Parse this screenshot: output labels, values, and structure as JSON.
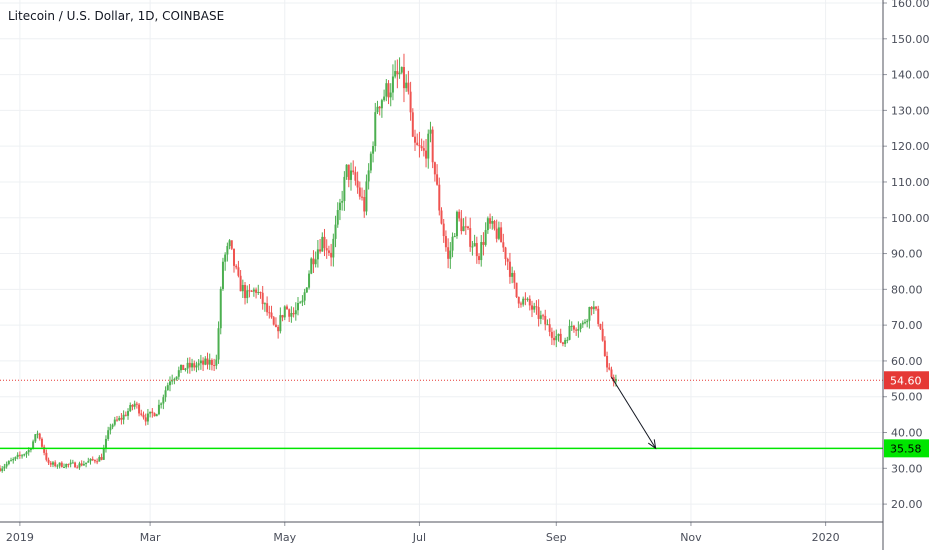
{
  "chart_data": {
    "type": "candlestick",
    "title": "Litecoin / U.S. Dollar, 1D, COINBASE",
    "x_labels": [
      "2019",
      "Mar",
      "May",
      "Jul",
      "Sep",
      "Nov",
      "2020"
    ],
    "y_ticks": [
      "20.00",
      "30.00",
      "40.00",
      "50.00",
      "60.00",
      "70.00",
      "80.00",
      "90.00",
      "100.00",
      "110.00",
      "120.00",
      "130.00",
      "140.00",
      "150.00",
      "160.00"
    ],
    "ylim": [
      15,
      160
    ],
    "xlim": [
      "2018-12-23",
      "2020-01-27"
    ],
    "grid": true,
    "colors": {
      "up": "#26a69a",
      "up_bar": "#4caf50",
      "down": "#ef5350",
      "support": "#00e600",
      "price_line": "#e53935"
    },
    "price_line": {
      "value": 54.6,
      "label": "54.60"
    },
    "support_line": {
      "value": 35.58,
      "label": "35.58"
    },
    "arrow": {
      "from": {
        "date": "2019-09-26",
        "price": 55.5
      },
      "to": {
        "date": "2019-10-16",
        "price": 35.6
      }
    },
    "path": [
      [
        "2018-12-23",
        30
      ],
      [
        "2019-01-05",
        35
      ],
      [
        "2019-01-09",
        40
      ],
      [
        "2019-01-14",
        31
      ],
      [
        "2019-01-28",
        31
      ],
      [
        "2019-02-07",
        33
      ],
      [
        "2019-02-11",
        42
      ],
      [
        "2019-02-16",
        44
      ],
      [
        "2019-02-22",
        48
      ],
      [
        "2019-02-27",
        44
      ],
      [
        "2019-03-04",
        46
      ],
      [
        "2019-03-10",
        55
      ],
      [
        "2019-03-16",
        58
      ],
      [
        "2019-03-24",
        59
      ],
      [
        "2019-03-31",
        60
      ],
      [
        "2019-04-03",
        88
      ],
      [
        "2019-04-06",
        92
      ],
      [
        "2019-04-10",
        82
      ],
      [
        "2019-04-14",
        78
      ],
      [
        "2019-04-18",
        80
      ],
      [
        "2019-04-22",
        75
      ],
      [
        "2019-04-27",
        68
      ],
      [
        "2019-05-01",
        75
      ],
      [
        "2019-05-05",
        73
      ],
      [
        "2019-05-09",
        76
      ],
      [
        "2019-05-13",
        88
      ],
      [
        "2019-05-18",
        94
      ],
      [
        "2019-05-22",
        90
      ],
      [
        "2019-05-29",
        113
      ],
      [
        "2019-06-02",
        110
      ],
      [
        "2019-06-06",
        103
      ],
      [
        "2019-06-12",
        132
      ],
      [
        "2019-06-18",
        137
      ],
      [
        "2019-06-22",
        140
      ],
      [
        "2019-06-26",
        135
      ],
      [
        "2019-06-28",
        120
      ],
      [
        "2019-07-03",
        118
      ],
      [
        "2019-07-06",
        122
      ],
      [
        "2019-07-10",
        103
      ],
      [
        "2019-07-14",
        88
      ],
      [
        "2019-07-18",
        100
      ],
      [
        "2019-07-23",
        95
      ],
      [
        "2019-07-28",
        90
      ],
      [
        "2019-08-01",
        98
      ],
      [
        "2019-08-06",
        95
      ],
      [
        "2019-08-10",
        88
      ],
      [
        "2019-08-14",
        78
      ],
      [
        "2019-08-19",
        76
      ],
      [
        "2019-08-25",
        72
      ],
      [
        "2019-08-30",
        68
      ],
      [
        "2019-09-04",
        65
      ],
      [
        "2019-09-08",
        70
      ],
      [
        "2019-09-13",
        70
      ],
      [
        "2019-09-17",
        76
      ],
      [
        "2019-09-21",
        70
      ],
      [
        "2019-09-24",
        57
      ],
      [
        "2019-09-28",
        54.6
      ]
    ]
  }
}
